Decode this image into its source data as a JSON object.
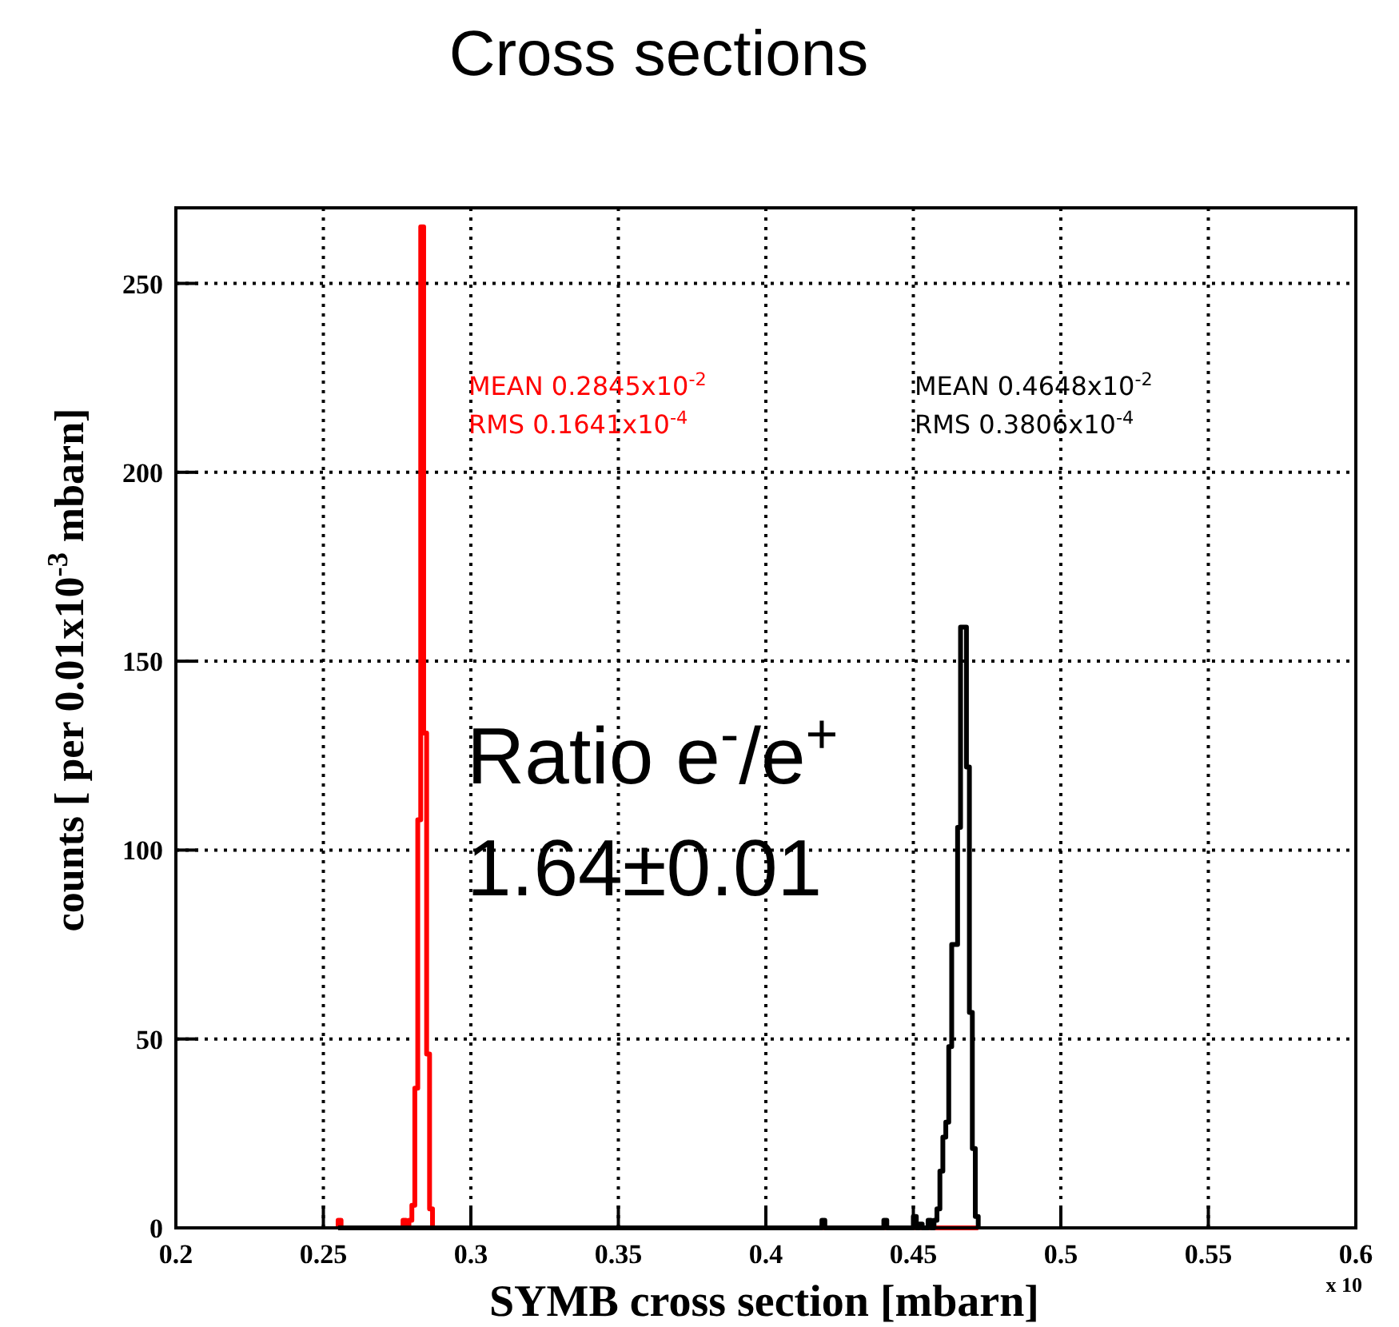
{
  "chart_data": {
    "type": "histogram",
    "title": "Cross sections",
    "xlabel": "SYMB cross section [mbarn]",
    "ylabel": "counts [ per 0.01x10$^{-3}$ mbarn]",
    "xlim": [
      0.2,
      0.6
    ],
    "xticks": [
      0.2,
      0.25,
      0.3,
      0.35,
      0.4,
      0.45,
      0.5,
      0.55,
      0.6
    ],
    "ylim": [
      0,
      270
    ],
    "yticks": [
      0,
      50,
      100,
      150,
      200,
      250
    ],
    "grid": true,
    "line_style": "dotted",
    "bins": [
      0.255,
      0.256,
      0.257,
      0.258,
      0.259,
      0.26,
      0.261,
      0.262,
      0.263,
      0.264,
      0.265,
      0.266,
      0.267,
      0.268,
      0.269,
      0.27,
      0.271,
      0.272,
      0.273,
      0.274,
      0.275,
      0.276,
      0.277,
      0.278,
      0.279,
      0.28,
      0.281,
      0.282,
      0.283,
      0.284,
      0.285,
      0.286,
      0.287,
      0.288,
      0.289,
      0.29,
      0.291,
      0.292,
      0.293,
      0.294,
      0.295,
      0.296,
      0.297,
      0.298,
      0.299,
      0.3,
      0.301,
      0.302,
      0.303,
      0.304,
      0.305,
      0.306,
      0.307,
      0.308,
      0.309,
      0.31,
      0.311,
      0.312,
      0.313,
      0.314,
      0.315,
      0.316,
      0.317,
      0.318,
      0.319,
      0.32,
      0.321,
      0.322,
      0.323,
      0.324,
      0.325,
      0.326,
      0.327,
      0.328,
      0.329,
      0.33,
      0.331,
      0.332,
      0.333,
      0.334,
      0.335,
      0.336,
      0.337,
      0.338,
      0.339,
      0.34,
      0.341,
      0.342,
      0.343,
      0.344,
      0.345,
      0.346,
      0.347,
      0.348,
      0.349,
      0.35,
      0.351,
      0.352,
      0.353,
      0.354,
      0.355,
      0.356,
      0.357,
      0.358,
      0.359,
      0.36,
      0.361,
      0.362,
      0.363,
      0.364,
      0.365,
      0.366,
      0.367,
      0.368,
      0.369,
      0.37,
      0.371,
      0.372,
      0.373,
      0.374,
      0.375,
      0.376,
      0.377,
      0.378,
      0.379,
      0.38,
      0.381,
      0.382,
      0.383,
      0.384,
      0.385,
      0.386,
      0.387,
      0.388,
      0.389,
      0.39,
      0.391,
      0.392,
      0.393,
      0.394,
      0.395,
      0.396,
      0.397,
      0.398,
      0.399,
      0.4,
      0.401,
      0.402,
      0.403,
      0.404,
      0.405,
      0.406,
      0.407,
      0.408,
      0.409,
      0.41,
      0.411,
      0.412,
      0.413,
      0.414,
      0.415,
      0.416,
      0.417,
      0.418,
      0.419,
      0.42,
      0.421,
      0.422,
      0.423,
      0.424,
      0.425,
      0.426,
      0.427,
      0.428,
      0.429,
      0.43,
      0.431,
      0.432,
      0.433,
      0.434,
      0.435,
      0.436,
      0.437,
      0.438,
      0.439,
      0.44,
      0.441,
      0.442,
      0.443,
      0.444,
      0.445,
      0.446,
      0.447,
      0.448,
      0.449,
      0.45,
      0.451,
      0.452,
      0.453,
      0.454,
      0.455,
      0.456,
      0.457,
      0.458,
      0.459,
      0.46,
      0.461,
      0.462,
      0.463,
      0.464,
      0.465,
      0.466,
      0.467,
      0.468,
      0.469,
      0.47,
      0.471,
      0.472
    ],
    "series": [
      {
        "color": "#ff0000",
        "values": [
          2,
          0,
          0,
          0,
          0,
          0,
          0,
          0,
          0,
          0,
          0,
          0,
          0,
          0,
          0,
          0,
          0,
          0,
          0,
          0,
          0,
          0,
          2,
          0,
          2,
          6,
          37,
          108,
          265,
          131,
          46,
          5,
          0,
          0,
          0,
          0,
          0,
          0,
          0,
          0,
          0,
          0,
          0,
          0,
          0,
          0,
          0,
          0,
          0,
          0,
          0,
          0,
          0,
          0,
          0,
          0,
          0,
          0,
          0,
          0,
          0,
          0,
          0,
          0,
          0,
          0,
          0,
          0,
          0,
          0,
          0,
          0,
          0,
          0,
          0,
          0,
          0,
          0,
          0,
          0,
          0,
          0,
          0,
          0,
          0,
          0,
          0,
          0,
          0,
          0,
          0,
          0,
          0,
          0,
          0,
          0,
          0,
          0,
          0,
          0,
          0,
          0,
          0,
          0,
          0,
          0,
          0,
          0,
          0,
          0,
          0,
          0,
          0,
          0,
          0,
          0,
          0,
          0,
          0,
          0,
          0,
          0,
          0,
          0,
          0,
          0,
          0,
          0,
          0,
          0,
          0,
          0,
          0,
          0,
          0,
          0,
          0,
          0,
          0,
          0,
          0,
          0,
          0,
          0,
          0,
          0,
          0,
          0,
          0,
          0,
          0,
          0,
          0,
          0,
          0,
          0,
          0,
          0,
          0,
          0,
          0,
          0,
          0,
          0,
          0,
          0,
          0,
          0,
          0,
          0,
          0,
          0,
          0,
          0,
          0,
          0,
          0,
          0,
          0,
          0,
          0,
          0,
          0,
          0,
          0,
          0,
          0,
          0,
          0,
          0,
          0,
          0,
          0,
          0,
          0,
          0,
          0,
          0,
          0,
          0,
          0,
          0,
          0,
          0,
          0,
          0,
          0,
          0,
          0,
          0,
          0,
          0,
          0,
          0,
          0,
          0,
          0
        ]
      },
      {
        "color": "#000000",
        "values": [
          0,
          0,
          0,
          0,
          0,
          0,
          0,
          0,
          0,
          0,
          0,
          0,
          0,
          0,
          0,
          0,
          0,
          0,
          0,
          0,
          0,
          0,
          0,
          0,
          0,
          0,
          0,
          0,
          0,
          0,
          0,
          0,
          0,
          0,
          0,
          0,
          0,
          0,
          0,
          0,
          0,
          0,
          0,
          0,
          0,
          0,
          0,
          0,
          0,
          0,
          0,
          0,
          0,
          0,
          0,
          0,
          0,
          0,
          0,
          0,
          0,
          0,
          0,
          0,
          0,
          0,
          0,
          0,
          0,
          0,
          0,
          0,
          0,
          0,
          0,
          0,
          0,
          0,
          0,
          0,
          0,
          0,
          0,
          0,
          0,
          0,
          0,
          0,
          0,
          0,
          0,
          0,
          0,
          0,
          0,
          0,
          0,
          0,
          0,
          0,
          0,
          0,
          0,
          0,
          0,
          0,
          0,
          0,
          0,
          0,
          0,
          0,
          0,
          0,
          0,
          0,
          0,
          0,
          0,
          0,
          0,
          0,
          0,
          0,
          0,
          0,
          0,
          0,
          0,
          0,
          0,
          0,
          0,
          0,
          0,
          0,
          0,
          0,
          0,
          0,
          0,
          0,
          0,
          0,
          0,
          0,
          0,
          0,
          0,
          0,
          0,
          0,
          0,
          0,
          0,
          0,
          0,
          0,
          0,
          0,
          0,
          0,
          0,
          0,
          2,
          0,
          0,
          0,
          0,
          0,
          0,
          0,
          0,
          0,
          0,
          0,
          0,
          0,
          0,
          0,
          0,
          0,
          0,
          0,
          0,
          2,
          0,
          0,
          0,
          0,
          0,
          0,
          0,
          0,
          0,
          3,
          0,
          1,
          0,
          0,
          2,
          0,
          2,
          5,
          15,
          24,
          28,
          48,
          75,
          75,
          106,
          159,
          159,
          122,
          57,
          21,
          3
        ]
      }
    ],
    "annotations": [
      "MEAN 0.2845x10$^{-2}$",
      "RMS  0.1641x10$^{-4}$",
      "MEAN 0.4648x10$^{-2}$",
      "RMS  0.3806x10$^{-4}$",
      "Ratio e$^{-}$/e$^{+}$",
      "1.64±0.01",
      "x 10"
    ]
  }
}
